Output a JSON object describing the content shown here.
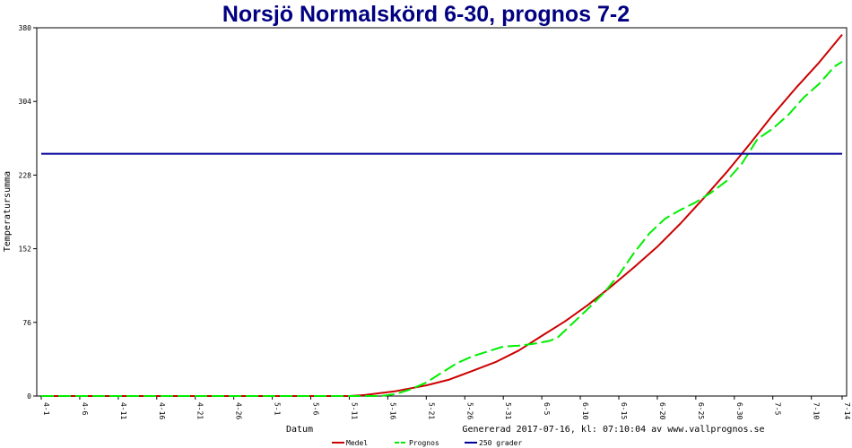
{
  "chart_data": {
    "type": "line",
    "title": "Norsjö Normalskörd 6-30, prognos 7-2",
    "xlabel": "Datum",
    "ylabel": "Temperatursumma",
    "footer": "Genererad 2017-07-16, kl: 07:10:04 av www.vallprognos.se",
    "ylim": [
      0,
      380
    ],
    "yticks": [
      0,
      76,
      152,
      228,
      304,
      380
    ],
    "xlim": [
      0,
      104
    ],
    "xticks": [
      {
        "pos": 0,
        "label": "4-1"
      },
      {
        "pos": 5,
        "label": "4-6"
      },
      {
        "pos": 10,
        "label": "4-11"
      },
      {
        "pos": 15,
        "label": "4-16"
      },
      {
        "pos": 20,
        "label": "4-21"
      },
      {
        "pos": 25,
        "label": "4-26"
      },
      {
        "pos": 30,
        "label": "5-1"
      },
      {
        "pos": 35,
        "label": "5-6"
      },
      {
        "pos": 40,
        "label": "5-11"
      },
      {
        "pos": 45,
        "label": "5-16"
      },
      {
        "pos": 50,
        "label": "5-21"
      },
      {
        "pos": 55,
        "label": "5-26"
      },
      {
        "pos": 60,
        "label": "5-31"
      },
      {
        "pos": 65,
        "label": "6-5"
      },
      {
        "pos": 70,
        "label": "6-10"
      },
      {
        "pos": 75,
        "label": "6-15"
      },
      {
        "pos": 80,
        "label": "6-20"
      },
      {
        "pos": 85,
        "label": "6-25"
      },
      {
        "pos": 90,
        "label": "6-30"
      },
      {
        "pos": 95,
        "label": "7-5"
      },
      {
        "pos": 100,
        "label": "7-10"
      },
      {
        "pos": 104,
        "label": "7-14"
      }
    ],
    "legend_position": "bottom-center",
    "series": [
      {
        "name": "Medel",
        "color": "#cc0000",
        "style": "solid",
        "points": [
          [
            0,
            0
          ],
          [
            40,
            0
          ],
          [
            42,
            1
          ],
          [
            44,
            3
          ],
          [
            46,
            5
          ],
          [
            48,
            8
          ],
          [
            50,
            11
          ],
          [
            53,
            17
          ],
          [
            56,
            26
          ],
          [
            59,
            35
          ],
          [
            62,
            47
          ],
          [
            65,
            62
          ],
          [
            68,
            77
          ],
          [
            71,
            94
          ],
          [
            74,
            113
          ],
          [
            77,
            133
          ],
          [
            80,
            154
          ],
          [
            83,
            178
          ],
          [
            86,
            204
          ],
          [
            89,
            231
          ],
          [
            92,
            260
          ],
          [
            95,
            290
          ],
          [
            98,
            318
          ],
          [
            101,
            344
          ],
          [
            104,
            373
          ]
        ]
      },
      {
        "name": "Prognos",
        "color": "#00ee00",
        "style": "dashed",
        "points": [
          [
            0,
            0
          ],
          [
            44,
            0
          ],
          [
            46,
            2
          ],
          [
            48,
            7
          ],
          [
            50,
            14
          ],
          [
            52,
            24
          ],
          [
            54,
            34
          ],
          [
            56,
            41
          ],
          [
            58,
            46
          ],
          [
            60,
            51
          ],
          [
            62,
            52
          ],
          [
            64,
            54
          ],
          [
            66,
            57
          ],
          [
            67,
            60
          ],
          [
            69,
            75
          ],
          [
            71,
            90
          ],
          [
            73,
            106
          ],
          [
            75,
            125
          ],
          [
            77,
            148
          ],
          [
            79,
            168
          ],
          [
            81,
            183
          ],
          [
            83,
            192
          ],
          [
            85,
            200
          ],
          [
            87,
            210
          ],
          [
            89,
            222
          ],
          [
            91,
            240
          ],
          [
            93,
            265
          ],
          [
            95,
            276
          ],
          [
            97,
            290
          ],
          [
            99,
            308
          ],
          [
            101,
            322
          ],
          [
            103,
            340
          ],
          [
            104,
            345
          ]
        ]
      },
      {
        "name": "250 grader",
        "color": "#000099",
        "style": "solid",
        "points": [
          [
            0,
            250
          ],
          [
            104,
            250
          ]
        ]
      }
    ]
  }
}
